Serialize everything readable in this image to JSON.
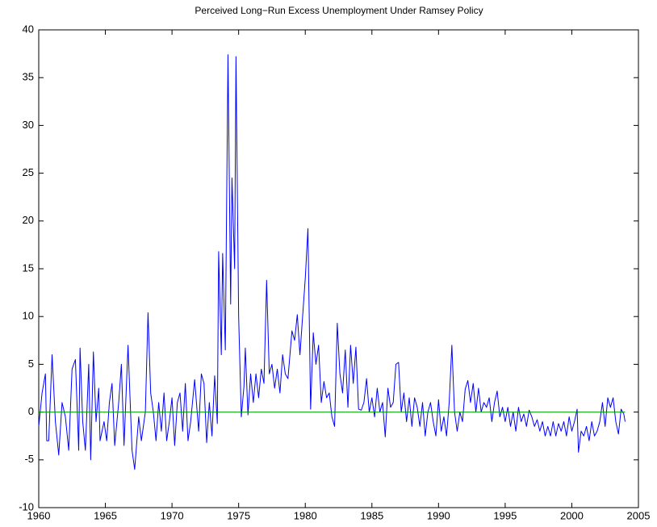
{
  "chart_data": {
    "type": "line",
    "title": "Perceived Long−Run Excess Unemployment Under Ramsey Policy",
    "xlim": [
      1960,
      2005
    ],
    "xticks": [
      1960,
      1965,
      1970,
      1975,
      1980,
      1985,
      1990,
      1995,
      2000,
      2005
    ],
    "ylim": [
      -10,
      40
    ],
    "yticks": [
      -10,
      -5,
      0,
      5,
      10,
      15,
      20,
      25,
      30,
      35,
      40
    ],
    "series": [
      {
        "color": "#0000ff",
        "x": [
          1960.0,
          1960.25,
          1960.5,
          1960.6,
          1960.75,
          1961.0,
          1961.25,
          1961.5,
          1961.75,
          1962.0,
          1962.25,
          1962.5,
          1962.75,
          1963.0,
          1963.1,
          1963.3,
          1963.5,
          1963.75,
          1963.9,
          1964.1,
          1964.3,
          1964.5,
          1964.6,
          1964.9,
          1965.1,
          1965.3,
          1965.5,
          1965.7,
          1966.0,
          1966.2,
          1966.4,
          1966.7,
          1967.0,
          1967.2,
          1967.5,
          1967.7,
          1968.0,
          1968.2,
          1968.4,
          1968.6,
          1968.8,
          1969.0,
          1969.2,
          1969.4,
          1969.6,
          1969.8,
          1970.0,
          1970.2,
          1970.4,
          1970.6,
          1970.8,
          1971.0,
          1971.2,
          1971.4,
          1971.7,
          1972.0,
          1972.2,
          1972.4,
          1972.6,
          1972.8,
          1973.0,
          1973.2,
          1973.4,
          1973.5,
          1973.7,
          1973.8,
          1974.0,
          1974.2,
          1974.4,
          1974.5,
          1974.7,
          1974.8,
          1975.0,
          1975.2,
          1975.4,
          1975.5,
          1975.7,
          1975.9,
          1976.1,
          1976.3,
          1976.5,
          1976.7,
          1976.9,
          1977.1,
          1977.3,
          1977.5,
          1977.7,
          1977.9,
          1978.1,
          1978.3,
          1978.5,
          1978.7,
          1979.0,
          1979.2,
          1979.4,
          1979.6,
          1980.0,
          1980.2,
          1980.4,
          1980.6,
          1980.8,
          1981.0,
          1981.2,
          1981.4,
          1981.6,
          1981.8,
          1982.0,
          1982.2,
          1982.4,
          1982.6,
          1982.8,
          1983.0,
          1983.2,
          1983.4,
          1983.6,
          1983.8,
          1984.0,
          1984.2,
          1984.4,
          1984.6,
          1984.8,
          1985.0,
          1985.2,
          1985.4,
          1985.6,
          1985.8,
          1986.0,
          1986.2,
          1986.4,
          1986.6,
          1986.8,
          1987.0,
          1987.2,
          1987.4,
          1987.6,
          1987.8,
          1988.0,
          1988.2,
          1988.4,
          1988.6,
          1988.8,
          1989.0,
          1989.2,
          1989.4,
          1989.6,
          1989.8,
          1990.0,
          1990.2,
          1990.4,
          1990.6,
          1990.8,
          1991.0,
          1991.2,
          1991.4,
          1991.6,
          1991.8,
          1992.0,
          1992.2,
          1992.4,
          1992.6,
          1992.8,
          1993.0,
          1993.2,
          1993.4,
          1993.6,
          1993.8,
          1994.0,
          1994.2,
          1994.4,
          1994.6,
          1994.8,
          1995.0,
          1995.2,
          1995.4,
          1995.6,
          1995.8,
          1996.0,
          1996.2,
          1996.4,
          1996.6,
          1996.8,
          1997.0,
          1997.2,
          1997.4,
          1997.6,
          1997.8,
          1998.0,
          1998.2,
          1998.4,
          1998.6,
          1998.8,
          1999.0,
          1999.2,
          1999.4,
          1999.6,
          1999.8,
          2000.0,
          2000.2,
          2000.4,
          2000.5,
          2000.7,
          2000.9,
          2001.1,
          2001.3,
          2001.5,
          2001.7,
          2001.9,
          2002.1,
          2002.3,
          2002.5,
          2002.7,
          2002.9,
          2003.1,
          2003.3,
          2003.5,
          2003.7,
          2003.9,
          2004.0
        ],
        "values": [
          -1.5,
          2,
          4,
          -3,
          -3,
          6,
          -1,
          -4.5,
          1,
          -0.5,
          -4,
          4.5,
          5.5,
          -4,
          6.7,
          -1,
          -4,
          5,
          -5,
          6.3,
          -1,
          2.5,
          -3,
          -1,
          -3,
          1,
          3,
          -3.5,
          1,
          5,
          -3.5,
          7,
          -4,
          -6,
          -0.5,
          -3,
          0,
          10.4,
          2,
          0,
          -3,
          1,
          -2,
          2,
          -3,
          -1,
          1.5,
          -3.5,
          1,
          2,
          -2,
          3,
          -3,
          -1,
          3.4,
          -2,
          4,
          3,
          -3.2,
          1,
          -2.5,
          3.8,
          -1.2,
          16.8,
          6,
          16.6,
          6.5,
          37.4,
          11.3,
          24.5,
          15,
          37.2,
          10,
          -0.5,
          2.7,
          6.7,
          -0.3,
          4,
          1,
          4,
          1.5,
          4.5,
          3,
          13.8,
          4,
          5,
          2.5,
          4.5,
          2,
          6,
          4,
          3.5,
          8.5,
          7.5,
          10.2,
          6,
          14,
          19.2,
          0.3,
          8.3,
          5,
          7,
          1,
          3.2,
          1.5,
          2,
          -0.5,
          -1.5,
          9.3,
          4,
          2,
          6.5,
          0.5,
          7,
          3,
          6.8,
          0.3,
          0.2,
          1,
          3.5,
          0,
          1.5,
          -0.5,
          2.5,
          0,
          1,
          -2.6,
          2.5,
          0.5,
          1,
          5,
          5.2,
          0,
          2,
          -1,
          1.5,
          -1.5,
          1.5,
          0.5,
          -1.5,
          1,
          -2.5,
          0,
          1,
          -1,
          -2.5,
          1.3,
          -2,
          -0.5,
          -2.5,
          1,
          7,
          0,
          -2,
          0,
          -1,
          2.4,
          3.3,
          1,
          3,
          0,
          2.5,
          0,
          1,
          0.5,
          1.5,
          -1,
          1,
          2.2,
          -0.5,
          0.5,
          -1,
          0.5,
          -1.5,
          0,
          -2,
          0.5,
          -1,
          -0.2,
          -1.5,
          0.2,
          -0.5,
          -1.5,
          -0.8,
          -2,
          -1,
          -2.5,
          -1.5,
          -2.5,
          -1,
          -2.5,
          -1.2,
          -2,
          -1,
          -2.5,
          -0.5,
          -2,
          -1,
          0.3,
          -4.2,
          -2,
          -2.5,
          -1.5,
          -3,
          -1,
          -2.5,
          -2,
          -1,
          1,
          -1.5,
          1.5,
          0.5,
          1.5,
          -1,
          -2.3,
          0.3,
          -0.2,
          -1
        ]
      },
      {
        "color": "#00a000",
        "x": [
          1960,
          2004
        ],
        "values": [
          0,
          0
        ]
      }
    ]
  }
}
